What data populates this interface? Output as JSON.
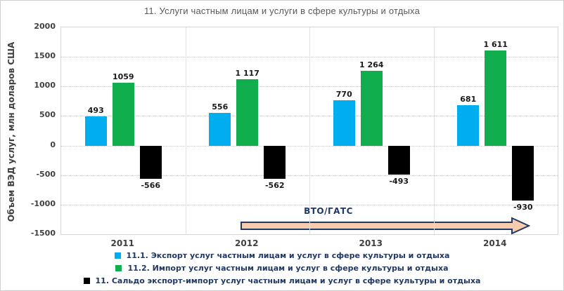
{
  "title": "11. Услуги частным лицам и услуги в сфере культуры и отдыха",
  "y_axis": {
    "label": "Объем ВЭД услуг, млн доларов  США",
    "ticks": [
      "2000",
      "1500",
      "1000",
      "500",
      "0",
      "-500",
      "-1000",
      "-1500"
    ]
  },
  "annotation": {
    "text": "ВТО/ГАТС",
    "fill": "#f8cbad",
    "border": "#1f3864"
  },
  "legend": {
    "items": [
      {
        "label": "11.1.  Экспорт услуг частным лицам и услуг  в сфере культуры и отдыха",
        "color": "#00aeef"
      },
      {
        "label": "11.2.  Импорт услуг частным лицам и услуг  в сфере культуры и отдыха",
        "color": "#10ae4c"
      },
      {
        "label": "11.  Сальдо экспорт-импорт услуг частным лицам  и услуг в сфере культуры и  отдыха",
        "color": "#000000"
      }
    ]
  },
  "chart_data": {
    "type": "bar",
    "categories": [
      "2011",
      "2012",
      "2013",
      "2014"
    ],
    "series": [
      {
        "name": "11.1. Экспорт услуг частным лицам и услуг в сфере культуры и отдыха",
        "color": "#00aeef",
        "values": [
          493,
          556,
          770,
          681
        ],
        "labels": [
          "493",
          "556",
          "770",
          "681"
        ]
      },
      {
        "name": "11.2. Импорт услуг частным лицам и услуг в сфере культуры и отдыха",
        "color": "#10ae4c",
        "values": [
          1059,
          1117,
          1264,
          1611
        ],
        "labels": [
          "1059",
          "1 117",
          "1 264",
          "1 611"
        ]
      },
      {
        "name": "11. Сальдо экспорт-импорт услуг частным лицам и услуг в сфере культуры и отдыха",
        "color": "#000000",
        "values": [
          -566,
          -562,
          -493,
          -930
        ],
        "labels": [
          "-566",
          "-562",
          "-493",
          "-930"
        ]
      }
    ],
    "title": "11. Услуги частным лицам и услуги в сфере культуры и отдыха",
    "xlabel": "",
    "ylabel": "Объем ВЭД услуг, млн доларов США",
    "ylim": [
      -1500,
      2000
    ],
    "grid": true,
    "legend_position": "bottom",
    "annotation_arrow": "ВТО/ГАТС (spans 2012–2014, pointing right)"
  }
}
